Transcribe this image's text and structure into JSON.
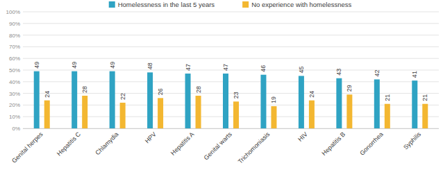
{
  "chart_data": {
    "type": "bar",
    "categories": [
      "Genital herpes",
      "Hepatitis C",
      "Chlamydia",
      "HPV",
      "Hepatitis A",
      "Genital warts",
      "Trichomoniasis",
      "HIV",
      "Hepatitis B",
      "Gonorrhea",
      "Syphilis"
    ],
    "series": [
      {
        "name": "Homelessness in the last 5 years",
        "color": "#2fa3c3",
        "values": [
          49,
          49,
          49,
          48,
          47,
          47,
          46,
          45,
          43,
          42,
          41
        ]
      },
      {
        "name": "No experience with homelessness",
        "color": "#f3b731",
        "values": [
          24,
          28,
          22,
          26,
          28,
          23,
          19,
          24,
          29,
          21,
          21
        ]
      }
    ],
    "ylim": [
      0,
      100
    ],
    "yticks": [
      {
        "value": 0,
        "label": "0%"
      },
      {
        "value": 10,
        "label": "10%"
      },
      {
        "value": 20,
        "label": "20%"
      },
      {
        "value": 30,
        "label": "30%"
      },
      {
        "value": 40,
        "label": "40%"
      },
      {
        "value": 50,
        "label": "50%"
      },
      {
        "value": 60,
        "label": "60%"
      },
      {
        "value": 70,
        "label": "70%"
      },
      {
        "value": 80,
        "label": "80%"
      },
      {
        "value": 90,
        "label": "90%"
      },
      {
        "value": 100,
        "label": "100%"
      }
    ],
    "grid": true,
    "legend": "top",
    "data_labels": true
  }
}
